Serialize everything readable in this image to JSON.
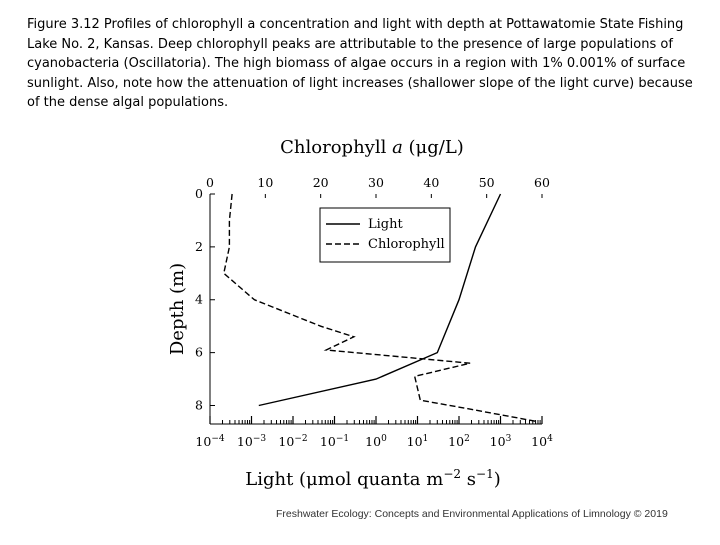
{
  "caption": "Figure 3.12 Profiles of chlorophyll a concentration and light with depth at Pottawatomie State Fishing Lake No. 2, Kansas. Deep chlorophyll peaks are attributable to the presence of large populations of cyanobacteria (Oscillatoria). The high biomass of algae occurs in a region with 1% 0.001% of surface sunlight. Also, note how the attenuation of light increases (shallower slope of the light curve) because of the dense algal populations.",
  "credit": "Freshwater Ecology: Concepts and Environmental Applications of Limnology © 2019",
  "chart_data": {
    "type": "line",
    "top_axis": {
      "label_main": "Chlorophyll ",
      "label_italic": "a",
      "label_unit": " (μg/L)",
      "range": [
        0,
        60
      ],
      "ticks": [
        "0",
        "10",
        "20",
        "30",
        "40",
        "50",
        "60"
      ]
    },
    "bottom_axis": {
      "label_main": "Light (μmol quanta m",
      "label_sup1": "−2",
      "label_mid": " s",
      "label_sup2": "−1",
      "label_end": ")",
      "scale": "log",
      "range": [
        -4,
        4
      ],
      "tick_base": "10",
      "tick_exponents": [
        "−4",
        "−3",
        "−2",
        "−1",
        "0",
        "1",
        "2",
        "3",
        "4"
      ]
    },
    "y_axis": {
      "label": "Depth (m)",
      "range": [
        0,
        8.7
      ],
      "inverted": true,
      "ticks": [
        "0",
        "2",
        "4",
        "6",
        "8"
      ]
    },
    "legend": {
      "position": "top-right",
      "entries": [
        "Light",
        "Chlorophyll"
      ]
    },
    "series": [
      {
        "name": "Light",
        "axis": "bottom",
        "style": "solid",
        "points": [
          {
            "value": 1000,
            "depth": 0
          },
          {
            "value": 250,
            "depth": 2
          },
          {
            "value": 100,
            "depth": 4
          },
          {
            "value": 30,
            "depth": 6
          },
          {
            "value": 1,
            "depth": 7
          },
          {
            "value": 0.0015,
            "depth": 8
          }
        ]
      },
      {
        "name": "Chlorophyll",
        "axis": "top",
        "style": "dashed",
        "points": [
          {
            "value": 4,
            "depth": 0
          },
          {
            "value": 3.5,
            "depth": 1
          },
          {
            "value": 3.5,
            "depth": 2
          },
          {
            "value": 2.5,
            "depth": 3
          },
          {
            "value": 8,
            "depth": 4
          },
          {
            "value": 20,
            "depth": 5
          },
          {
            "value": 26,
            "depth": 5.4
          },
          {
            "value": 21,
            "depth": 5.9
          },
          {
            "value": 47,
            "depth": 6.4
          },
          {
            "value": 37,
            "depth": 6.9
          },
          {
            "value": 38,
            "depth": 7.8
          },
          {
            "value": 46,
            "depth": 8.1
          },
          {
            "value": 59,
            "depth": 8.6
          }
        ]
      }
    ]
  }
}
